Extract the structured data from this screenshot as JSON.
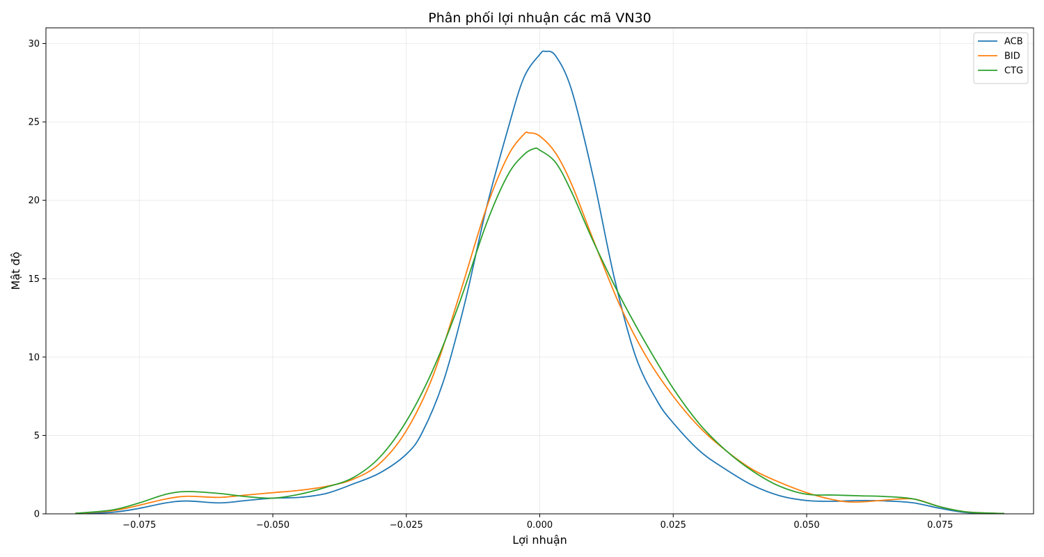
{
  "chart_data": {
    "type": "line",
    "title": "Phân phối lợi nhuận các mã VN30",
    "xlabel": "Lợi nhuận",
    "ylabel": "Mật độ",
    "xlim": [
      -0.0925,
      0.0925
    ],
    "ylim": [
      0,
      31
    ],
    "xticks": [
      -0.075,
      -0.05,
      -0.025,
      0.0,
      0.025,
      0.05,
      0.075
    ],
    "xtick_labels": [
      "−0.075",
      "−0.050",
      "−0.025",
      "0.000",
      "0.025",
      "0.050",
      "0.075"
    ],
    "yticks": [
      0,
      5,
      10,
      15,
      20,
      25,
      30
    ],
    "ytick_labels": [
      "0",
      "5",
      "10",
      "15",
      "20",
      "25",
      "30"
    ],
    "grid": true,
    "legend_position": "top-right",
    "series": [
      {
        "name": "ACB",
        "color": "#1f77b4",
        "x": [
          -0.087,
          -0.08,
          -0.075,
          -0.07,
          -0.066,
          -0.06,
          -0.055,
          -0.05,
          -0.045,
          -0.04,
          -0.035,
          -0.03,
          -0.025,
          -0.022,
          -0.018,
          -0.014,
          -0.01,
          -0.006,
          -0.003,
          0.0,
          0.001,
          0.003,
          0.006,
          0.01,
          0.014,
          0.018,
          0.022,
          0.025,
          0.03,
          0.035,
          0.04,
          0.045,
          0.05,
          0.055,
          0.06,
          0.065,
          0.07,
          0.075,
          0.08,
          0.087
        ],
        "y": [
          0.02,
          0.1,
          0.35,
          0.7,
          0.82,
          0.7,
          0.85,
          1.0,
          1.05,
          1.3,
          1.9,
          2.6,
          3.8,
          5.2,
          8.5,
          13.5,
          19.5,
          24.5,
          27.8,
          29.3,
          29.5,
          29.2,
          27.0,
          21.5,
          15.0,
          10.0,
          7.2,
          5.8,
          4.0,
          2.8,
          1.8,
          1.15,
          0.85,
          0.8,
          0.85,
          0.82,
          0.7,
          0.35,
          0.08,
          0.02
        ]
      },
      {
        "name": "BID",
        "color": "#ff7f0e",
        "x": [
          -0.087,
          -0.08,
          -0.075,
          -0.07,
          -0.066,
          -0.06,
          -0.055,
          -0.05,
          -0.045,
          -0.04,
          -0.035,
          -0.03,
          -0.025,
          -0.02,
          -0.015,
          -0.01,
          -0.006,
          -0.003,
          -0.002,
          0.0,
          0.003,
          0.006,
          0.01,
          0.015,
          0.02,
          0.025,
          0.03,
          0.035,
          0.04,
          0.045,
          0.05,
          0.055,
          0.059,
          0.065,
          0.07,
          0.075,
          0.08,
          0.087
        ],
        "y": [
          0.03,
          0.2,
          0.55,
          0.95,
          1.12,
          1.05,
          1.2,
          1.35,
          1.5,
          1.75,
          2.2,
          3.2,
          5.3,
          8.8,
          14.0,
          19.5,
          22.8,
          24.2,
          24.3,
          24.1,
          23.0,
          21.0,
          17.5,
          13.3,
          10.0,
          7.5,
          5.5,
          4.0,
          2.8,
          2.0,
          1.35,
          0.9,
          0.75,
          0.88,
          0.95,
          0.45,
          0.12,
          0.02
        ]
      },
      {
        "name": "CTG",
        "color": "#2ca02c",
        "x": [
          -0.087,
          -0.08,
          -0.075,
          -0.07,
          -0.066,
          -0.06,
          -0.055,
          -0.05,
          -0.045,
          -0.04,
          -0.035,
          -0.03,
          -0.025,
          -0.02,
          -0.015,
          -0.01,
          -0.006,
          -0.003,
          -0.001,
          0.0,
          0.003,
          0.006,
          0.01,
          0.015,
          0.02,
          0.025,
          0.03,
          0.035,
          0.04,
          0.045,
          0.05,
          0.055,
          0.06,
          0.065,
          0.07,
          0.075,
          0.08,
          0.087
        ],
        "y": [
          0.03,
          0.25,
          0.7,
          1.25,
          1.42,
          1.3,
          1.1,
          1.0,
          1.25,
          1.7,
          2.3,
          3.6,
          5.9,
          9.2,
          13.5,
          18.5,
          21.6,
          22.9,
          23.3,
          23.2,
          22.4,
          20.5,
          17.4,
          13.9,
          10.8,
          8.0,
          5.7,
          4.0,
          2.7,
          1.75,
          1.25,
          1.2,
          1.15,
          1.1,
          0.95,
          0.45,
          0.12,
          0.02
        ]
      }
    ]
  }
}
